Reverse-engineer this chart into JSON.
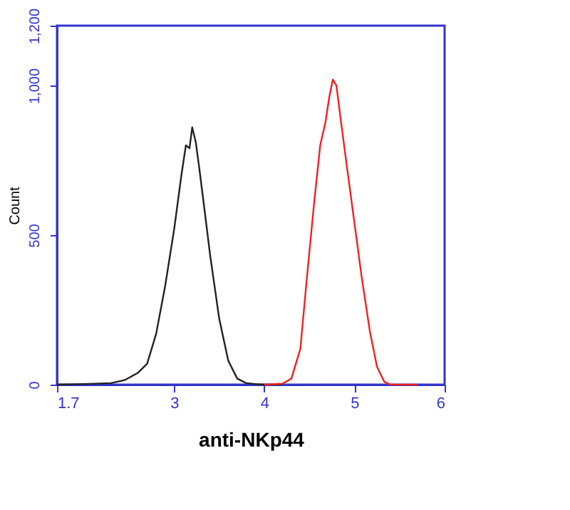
{
  "chart_data": {
    "type": "line",
    "xlabel": "anti-NKp44",
    "ylabel": "Count",
    "xlim": [
      1.7,
      6
    ],
    "ylim": [
      0,
      1200
    ],
    "xticks": [
      1.7,
      3,
      4,
      5,
      6
    ],
    "yticks": [
      0,
      500,
      {
        "value": 1000,
        "label": "1,000"
      },
      {
        "value": 1200,
        "label": "1,200"
      }
    ],
    "grid": false,
    "legend": false,
    "marker": "none",
    "line_style": "solid",
    "series": [
      {
        "color": "#222222",
        "x": [
          1.7,
          2.0,
          2.3,
          2.45,
          2.6,
          2.7,
          2.8,
          2.9,
          3.0,
          3.08,
          3.13,
          3.17,
          3.2,
          3.24,
          3.28,
          3.33,
          3.4,
          3.5,
          3.6,
          3.7,
          3.8,
          3.9,
          4.0,
          4.2
        ],
        "values": [
          0,
          2,
          5,
          15,
          40,
          70,
          170,
          330,
          520,
          700,
          800,
          790,
          860,
          810,
          720,
          600,
          430,
          220,
          80,
          20,
          5,
          2,
          0,
          0
        ]
      },
      {
        "color": "#ee2222",
        "x": [
          4.0,
          4.2,
          4.3,
          4.4,
          4.47,
          4.55,
          4.62,
          4.68,
          4.72,
          4.76,
          4.8,
          4.85,
          4.92,
          5.0,
          5.08,
          5.17,
          5.25,
          5.33,
          5.4,
          5.7
        ],
        "values": [
          0,
          3,
          20,
          120,
          350,
          600,
          800,
          880,
          960,
          1020,
          1000,
          880,
          720,
          540,
          360,
          180,
          60,
          10,
          0,
          0
        ]
      }
    ]
  }
}
